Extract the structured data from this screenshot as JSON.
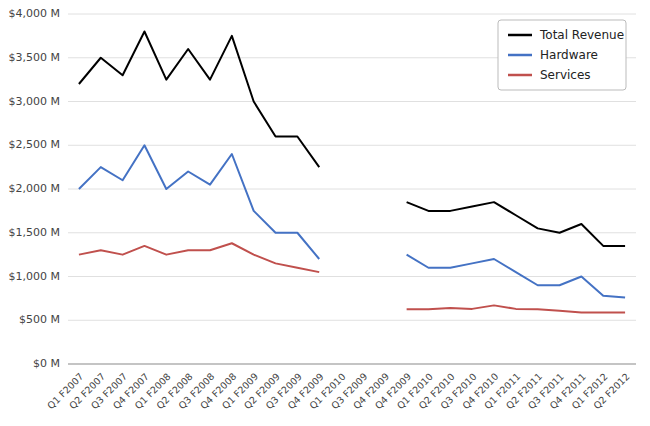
{
  "chart_data": {
    "type": "line",
    "categories": [
      "Q1 F2007",
      "Q2 F2007",
      "Q3 F2007",
      "Q4 F2007",
      "Q1 F2008",
      "Q2 F2008",
      "Q3 F2008",
      "Q4 F2008",
      "Q1 F2009",
      "Q2 F2009",
      "Q3 F2009",
      "Q4 F2009",
      "Q1 F2010",
      "Q3 F2009",
      "Q4 F2009",
      "Q4 F2009",
      "Q1 F2010",
      "Q2 F2010",
      "Q3 F2010",
      "Q4 F2010",
      "Q1 F2011",
      "Q2 F2011",
      "Q3 F2011",
      "Q4 F2011",
      "Q1 F2012",
      "Q2 F2012"
    ],
    "series": [
      {
        "name": "Total Revenue",
        "color": "#000000",
        "values": [
          3200,
          3500,
          3300,
          3800,
          3250,
          3600,
          3250,
          3750,
          3000,
          2600,
          2600,
          2250,
          null,
          null,
          null,
          1850,
          1750,
          1750,
          1800,
          1850,
          1700,
          1550,
          1500,
          1600,
          1350,
          1350
        ]
      },
      {
        "name": "Hardware",
        "color": "#4472C4",
        "values": [
          2000,
          2250,
          2100,
          2500,
          2000,
          2200,
          2050,
          2400,
          1750,
          1500,
          1500,
          1200,
          null,
          null,
          null,
          1250,
          1100,
          1100,
          1150,
          1200,
          1050,
          900,
          900,
          1000,
          780,
          760
        ]
      },
      {
        "name": "Services",
        "color": "#C0504D",
        "values": [
          1250,
          1300,
          1250,
          1350,
          1250,
          1300,
          1300,
          1380,
          1250,
          1150,
          1100,
          1050,
          null,
          null,
          null,
          625,
          625,
          640,
          630,
          670,
          630,
          625,
          610,
          590,
          590,
          590
        ]
      }
    ],
    "ylim": [
      0,
      4000
    ],
    "yticks": [
      {
        "value": 0,
        "label": "$0 M"
      },
      {
        "value": 500,
        "label": "$500 M"
      },
      {
        "value": 1000,
        "label": "$1,000 M"
      },
      {
        "value": 1500,
        "label": "$1,500 M"
      },
      {
        "value": 2000,
        "label": "$2,000 M"
      },
      {
        "value": 2500,
        "label": "$2,500 M"
      },
      {
        "value": 3000,
        "label": "$3,000 M"
      },
      {
        "value": 3500,
        "label": "$3,500 M"
      },
      {
        "value": 4000,
        "label": "$4,000 M"
      }
    ],
    "grid": true,
    "legend": "upper right"
  }
}
